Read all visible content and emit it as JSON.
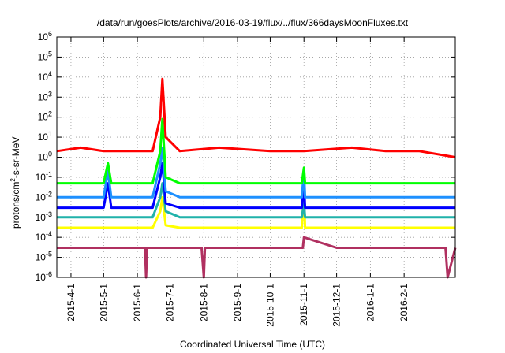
{
  "chart_data": {
    "type": "line",
    "title": "/data/run/goesPlots/archive/2016-03-19/flux/../flux/366daysMoonFluxes.txt",
    "xlabel": "Coordinated Universal Time (UTC)",
    "ylabel_parts": {
      "base": "protons/cm",
      "exp": "2",
      "rest": "-s-sr-MeV"
    },
    "scale": {
      "y": "log"
    },
    "ylim": [
      1e-06,
      1000000.0
    ],
    "xlim": [
      "2015-03-19",
      "2016-03-19"
    ],
    "yticks": [
      {
        "base": "10",
        "exp": "-6",
        "value": 1e-06
      },
      {
        "base": "10",
        "exp": "-5",
        "value": 1e-05
      },
      {
        "base": "10",
        "exp": "-4",
        "value": 0.0001
      },
      {
        "base": "10",
        "exp": "-3",
        "value": 0.001
      },
      {
        "base": "10",
        "exp": "-2",
        "value": 0.01
      },
      {
        "base": "10",
        "exp": "-1",
        "value": 0.1
      },
      {
        "base": "10",
        "exp": "0",
        "value": 1
      },
      {
        "base": "10",
        "exp": "1",
        "value": 10
      },
      {
        "base": "10",
        "exp": "2",
        "value": 100
      },
      {
        "base": "10",
        "exp": "3",
        "value": 1000
      },
      {
        "base": "10",
        "exp": "4",
        "value": 10000
      },
      {
        "base": "10",
        "exp": "5",
        "value": 100000
      },
      {
        "base": "10",
        "exp": "6",
        "value": 1000000
      }
    ],
    "xticks": [
      "2015-4-1",
      "2015-5-1",
      "2015-6-1",
      "2015-7-1",
      "2015-8-1",
      "2015-9-1",
      "2015-10-1",
      "2015-11-1",
      "2015-12-1",
      "2016-1-1",
      "2016-2-1"
    ],
    "grid": true,
    "series": [
      {
        "color": "#b03060",
        "x": [
          "2015-03-19",
          "2015-05-01",
          "2015-06-08",
          "2015-06-09",
          "2015-06-10",
          "2015-07-30",
          "2015-08-01",
          "2015-08-02",
          "2015-10-31",
          "2015-11-01",
          "2015-12-01",
          "2016-01-01",
          "2016-03-10",
          "2016-03-12",
          "2016-03-19"
        ],
        "y": [
          3e-05,
          3e-05,
          3e-05,
          1e-06,
          3e-05,
          3e-05,
          1e-06,
          3e-05,
          3e-05,
          0.0001,
          3e-05,
          3e-05,
          3e-05,
          1e-06,
          3e-05
        ]
      },
      {
        "color": "#ffff00",
        "x": [
          "2015-03-19",
          "2015-06-15",
          "2015-06-22",
          "2015-06-24",
          "2015-06-27",
          "2015-07-10",
          "2015-10-30",
          "2015-11-01",
          "2015-11-02",
          "2016-03-19"
        ],
        "y": [
          0.0003,
          0.0003,
          0.002,
          0.01,
          0.0004,
          0.0003,
          0.0003,
          0.02,
          0.0003,
          0.0003
        ]
      },
      {
        "color": "#20b2aa",
        "x": [
          "2015-03-19",
          "2015-06-15",
          "2015-06-22",
          "2015-06-24",
          "2015-06-27",
          "2015-07-10",
          "2015-10-30",
          "2015-11-01",
          "2015-11-02",
          "2016-03-19"
        ],
        "y": [
          0.001,
          0.001,
          0.01,
          0.05,
          0.002,
          0.001,
          0.001,
          0.005,
          0.001,
          0.001
        ]
      },
      {
        "color": "#0000ff",
        "x": [
          "2015-03-19",
          "2015-05-01",
          "2015-05-05",
          "2015-05-08",
          "2015-06-15",
          "2015-06-22",
          "2015-06-24",
          "2015-06-27",
          "2015-07-10",
          "2015-10-30",
          "2015-11-01",
          "2015-11-02",
          "2016-03-19"
        ],
        "y": [
          0.003,
          0.003,
          0.05,
          0.003,
          0.003,
          0.1,
          0.5,
          0.005,
          0.003,
          0.003,
          0.05,
          0.003,
          0.003
        ]
      },
      {
        "color": "#1e90ff",
        "x": [
          "2015-03-19",
          "2015-05-01",
          "2015-05-05",
          "2015-05-08",
          "2015-06-15",
          "2015-06-22",
          "2015-06-24",
          "2015-06-27",
          "2015-07-10",
          "2015-10-30",
          "2015-11-01",
          "2015-11-02",
          "2016-03-19"
        ],
        "y": [
          0.01,
          0.01,
          0.2,
          0.01,
          0.01,
          0.5,
          3,
          0.02,
          0.01,
          0.01,
          0.2,
          0.01,
          0.01
        ]
      },
      {
        "color": "#00ff00",
        "x": [
          "2015-03-19",
          "2015-05-01",
          "2015-05-05",
          "2015-05-08",
          "2015-06-15",
          "2015-06-22",
          "2015-06-24",
          "2015-06-27",
          "2015-07-10",
          "2015-10-30",
          "2015-11-01",
          "2015-11-02",
          "2016-03-19"
        ],
        "y": [
          0.05,
          0.05,
          0.5,
          0.05,
          0.05,
          2,
          80,
          0.1,
          0.05,
          0.05,
          0.3,
          0.05,
          0.05
        ]
      },
      {
        "color": "#ff0000",
        "x": [
          "2015-03-19",
          "2015-04-10",
          "2015-05-01",
          "2015-06-01",
          "2015-06-15",
          "2015-06-22",
          "2015-06-24",
          "2015-06-27",
          "2015-07-10",
          "2015-08-15",
          "2015-10-01",
          "2015-11-01",
          "2015-12-15",
          "2016-01-15",
          "2016-02-15",
          "2016-03-19"
        ],
        "y": [
          2,
          3,
          2,
          2,
          2,
          100,
          8000,
          10,
          2,
          3,
          2,
          2,
          3,
          2,
          2,
          1
        ]
      }
    ]
  }
}
